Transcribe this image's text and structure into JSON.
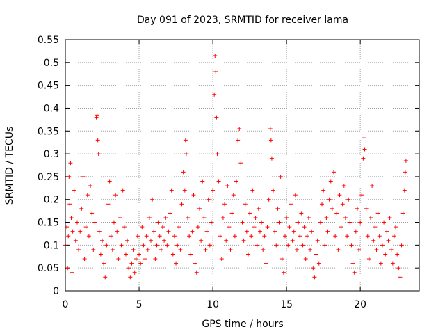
{
  "chart_data": {
    "type": "scatter",
    "title": "Day 091 of 2023, SRMTID for receiver lama",
    "xlabel": "GPS time / hours",
    "ylabel": "SRMTID / TECUs",
    "xlim": [
      0,
      24
    ],
    "ylim": [
      0,
      0.55
    ],
    "xticks": [
      0,
      5,
      10,
      15,
      20
    ],
    "xtick_labels": [
      "0",
      "5",
      "10",
      "15",
      "20"
    ],
    "yticks": [
      0,
      0.05,
      0.1,
      0.15,
      0.2,
      0.25,
      0.3,
      0.35,
      0.4,
      0.45,
      0.5,
      0.55
    ],
    "ytick_labels": [
      "0",
      "0.05",
      "0.1",
      "0.15",
      "0.2",
      "0.25",
      "0.3",
      "0.35",
      "0.4",
      "0.45",
      "0.5",
      "0.55"
    ],
    "grid": true,
    "marker": "plus",
    "marker_color": "#ff0000",
    "series": [
      {
        "name": "SRMTID",
        "points": [
          [
            0.0,
            0.1
          ],
          [
            0.1,
            0.14
          ],
          [
            0.15,
            0.05
          ],
          [
            0.2,
            0.12
          ],
          [
            0.25,
            0.25
          ],
          [
            0.3,
            0.19
          ],
          [
            0.35,
            0.28
          ],
          [
            0.4,
            0.16
          ],
          [
            0.45,
            0.04
          ],
          [
            0.5,
            0.13
          ],
          [
            0.6,
            0.22
          ],
          [
            0.7,
            0.11
          ],
          [
            0.8,
            0.15
          ],
          [
            0.9,
            0.09
          ],
          [
            1.0,
            0.13
          ],
          [
            1.1,
            0.18
          ],
          [
            1.2,
            0.25
          ],
          [
            1.3,
            0.07
          ],
          [
            1.4,
            0.14
          ],
          [
            1.5,
            0.21
          ],
          [
            1.6,
            0.12
          ],
          [
            1.7,
            0.23
          ],
          [
            1.8,
            0.17
          ],
          [
            1.9,
            0.09
          ],
          [
            2.0,
            0.15
          ],
          [
            2.1,
            0.38
          ],
          [
            2.15,
            0.385
          ],
          [
            2.2,
            0.33
          ],
          [
            2.25,
            0.3
          ],
          [
            2.3,
            0.13
          ],
          [
            2.4,
            0.08
          ],
          [
            2.5,
            0.11
          ],
          [
            2.6,
            0.06
          ],
          [
            2.7,
            0.03
          ],
          [
            2.8,
            0.1
          ],
          [
            2.9,
            0.19
          ],
          [
            3.0,
            0.24
          ],
          [
            3.1,
            0.12
          ],
          [
            3.2,
            0.09
          ],
          [
            3.3,
            0.15
          ],
          [
            3.4,
            0.21
          ],
          [
            3.5,
            0.13
          ],
          [
            3.6,
            0.07
          ],
          [
            3.7,
            0.16
          ],
          [
            3.8,
            0.1
          ],
          [
            3.9,
            0.22
          ],
          [
            4.0,
            0.14
          ],
          [
            4.1,
            0.08
          ],
          [
            4.2,
            0.11
          ],
          [
            4.3,
            0.05
          ],
          [
            4.4,
            0.03
          ],
          [
            4.5,
            0.06
          ],
          [
            4.6,
            0.09
          ],
          [
            4.7,
            0.04
          ],
          [
            4.8,
            0.07
          ],
          [
            4.9,
            0.12
          ],
          [
            5.0,
            0.08
          ],
          [
            5.1,
            0.06
          ],
          [
            5.2,
            0.14
          ],
          [
            5.3,
            0.1
          ],
          [
            5.4,
            0.07
          ],
          [
            5.5,
            0.12
          ],
          [
            5.6,
            0.09
          ],
          [
            5.7,
            0.16
          ],
          [
            5.8,
            0.11
          ],
          [
            5.9,
            0.2
          ],
          [
            6.0,
            0.13
          ],
          [
            6.1,
            0.07
          ],
          [
            6.2,
            0.1
          ],
          [
            6.3,
            0.15
          ],
          [
            6.4,
            0.12
          ],
          [
            6.5,
            0.09
          ],
          [
            6.6,
            0.14
          ],
          [
            6.7,
            0.11
          ],
          [
            6.8,
            0.16
          ],
          [
            6.9,
            0.1
          ],
          [
            7.0,
            0.13
          ],
          [
            7.1,
            0.17
          ],
          [
            7.2,
            0.22
          ],
          [
            7.3,
            0.08
          ],
          [
            7.4,
            0.12
          ],
          [
            7.5,
            0.06
          ],
          [
            7.6,
            0.1
          ],
          [
            7.7,
            0.14
          ],
          [
            7.8,
            0.09
          ],
          [
            7.9,
            0.19
          ],
          [
            8.0,
            0.26
          ],
          [
            8.1,
            0.22
          ],
          [
            8.15,
            0.33
          ],
          [
            8.2,
            0.3
          ],
          [
            8.3,
            0.16
          ],
          [
            8.4,
            0.12
          ],
          [
            8.5,
            0.08
          ],
          [
            8.6,
            0.13
          ],
          [
            8.7,
            0.21
          ],
          [
            8.8,
            0.06
          ],
          [
            8.9,
            0.04
          ],
          [
            9.0,
            0.14
          ],
          [
            9.1,
            0.18
          ],
          [
            9.2,
            0.11
          ],
          [
            9.3,
            0.24
          ],
          [
            9.4,
            0.16
          ],
          [
            9.5,
            0.09
          ],
          [
            9.6,
            0.13
          ],
          [
            9.7,
            0.2
          ],
          [
            9.8,
            0.1
          ],
          [
            9.9,
            0.15
          ],
          [
            10.0,
            0.22
          ],
          [
            10.1,
            0.43
          ],
          [
            10.15,
            0.515
          ],
          [
            10.2,
            0.48
          ],
          [
            10.25,
            0.38
          ],
          [
            10.3,
            0.3
          ],
          [
            10.4,
            0.24
          ],
          [
            10.5,
            0.12
          ],
          [
            10.6,
            0.07
          ],
          [
            10.7,
            0.16
          ],
          [
            10.8,
            0.19
          ],
          [
            10.9,
            0.11
          ],
          [
            11.0,
            0.23
          ],
          [
            11.1,
            0.14
          ],
          [
            11.2,
            0.09
          ],
          [
            11.3,
            0.17
          ],
          [
            11.4,
            0.21
          ],
          [
            11.5,
            0.12
          ],
          [
            11.6,
            0.24
          ],
          [
            11.7,
            0.33
          ],
          [
            11.8,
            0.355
          ],
          [
            11.9,
            0.28
          ],
          [
            12.0,
            0.15
          ],
          [
            12.1,
            0.11
          ],
          [
            12.2,
            0.19
          ],
          [
            12.3,
            0.13
          ],
          [
            12.4,
            0.08
          ],
          [
            12.5,
            0.17
          ],
          [
            12.6,
            0.12
          ],
          [
            12.7,
            0.22
          ],
          [
            12.8,
            0.14
          ],
          [
            12.9,
            0.16
          ],
          [
            13.0,
            0.1
          ],
          [
            13.1,
            0.18
          ],
          [
            13.2,
            0.13
          ],
          [
            13.3,
            0.15
          ],
          [
            13.4,
            0.09
          ],
          [
            13.5,
            0.12
          ],
          [
            13.6,
            0.06
          ],
          [
            13.7,
            0.14
          ],
          [
            13.8,
            0.2
          ],
          [
            13.9,
            0.355
          ],
          [
            13.95,
            0.33
          ],
          [
            14.0,
            0.29
          ],
          [
            14.1,
            0.22
          ],
          [
            14.2,
            0.13
          ],
          [
            14.3,
            0.1
          ],
          [
            14.4,
            0.18
          ],
          [
            14.5,
            0.15
          ],
          [
            14.6,
            0.25
          ],
          [
            14.7,
            0.07
          ],
          [
            14.8,
            0.04
          ],
          [
            14.9,
            0.12
          ],
          [
            15.0,
            0.16
          ],
          [
            15.1,
            0.1
          ],
          [
            15.2,
            0.14
          ],
          [
            15.3,
            0.19
          ],
          [
            15.4,
            0.11
          ],
          [
            15.5,
            0.13
          ],
          [
            15.6,
            0.21
          ],
          [
            15.7,
            0.09
          ],
          [
            15.8,
            0.15
          ],
          [
            15.9,
            0.12
          ],
          [
            16.0,
            0.17
          ],
          [
            16.1,
            0.1
          ],
          [
            16.2,
            0.14
          ],
          [
            16.3,
            0.07
          ],
          [
            16.4,
            0.12
          ],
          [
            16.5,
            0.16
          ],
          [
            16.6,
            0.09
          ],
          [
            16.7,
            0.13
          ],
          [
            16.8,
            0.05
          ],
          [
            16.9,
            0.03
          ],
          [
            17.0,
            0.08
          ],
          [
            17.1,
            0.11
          ],
          [
            17.2,
            0.06
          ],
          [
            17.3,
            0.15
          ],
          [
            17.4,
            0.19
          ],
          [
            17.5,
            0.22
          ],
          [
            17.6,
            0.1
          ],
          [
            17.7,
            0.16
          ],
          [
            17.8,
            0.13
          ],
          [
            17.9,
            0.2
          ],
          [
            18.0,
            0.24
          ],
          [
            18.1,
            0.18
          ],
          [
            18.2,
            0.26
          ],
          [
            18.3,
            0.12
          ],
          [
            18.4,
            0.17
          ],
          [
            18.5,
            0.09
          ],
          [
            18.6,
            0.21
          ],
          [
            18.7,
            0.14
          ],
          [
            18.8,
            0.19
          ],
          [
            18.9,
            0.23
          ],
          [
            19.0,
            0.16
          ],
          [
            19.1,
            0.12
          ],
          [
            19.2,
            0.2
          ],
          [
            19.3,
            0.15
          ],
          [
            19.4,
            0.1
          ],
          [
            19.5,
            0.06
          ],
          [
            19.6,
            0.04
          ],
          [
            19.7,
            0.13
          ],
          [
            19.8,
            0.18
          ],
          [
            19.9,
            0.09
          ],
          [
            20.0,
            0.15
          ],
          [
            20.1,
            0.21
          ],
          [
            20.2,
            0.29
          ],
          [
            20.25,
            0.335
          ],
          [
            20.3,
            0.31
          ],
          [
            20.4,
            0.18
          ],
          [
            20.5,
            0.12
          ],
          [
            20.6,
            0.07
          ],
          [
            20.7,
            0.16
          ],
          [
            20.8,
            0.23
          ],
          [
            20.9,
            0.11
          ],
          [
            21.0,
            0.14
          ],
          [
            21.1,
            0.09
          ],
          [
            21.2,
            0.17
          ],
          [
            21.3,
            0.12
          ],
          [
            21.4,
            0.06
          ],
          [
            21.5,
            0.1
          ],
          [
            21.6,
            0.15
          ],
          [
            21.7,
            0.08
          ],
          [
            21.8,
            0.13
          ],
          [
            21.9,
            0.11
          ],
          [
            22.0,
            0.16
          ],
          [
            22.1,
            0.09
          ],
          [
            22.2,
            0.06
          ],
          [
            22.3,
            0.12
          ],
          [
            22.4,
            0.14
          ],
          [
            22.5,
            0.08
          ],
          [
            22.6,
            0.05
          ],
          [
            22.7,
            0.03
          ],
          [
            22.8,
            0.1
          ],
          [
            22.9,
            0.17
          ],
          [
            23.0,
            0.22
          ],
          [
            23.05,
            0.26
          ],
          [
            23.1,
            0.285
          ]
        ]
      }
    ]
  }
}
